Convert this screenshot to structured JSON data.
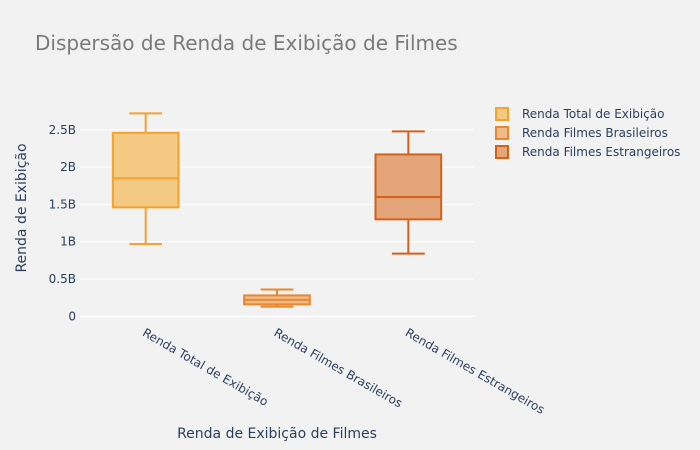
{
  "chart_data": {
    "type": "box",
    "title": "Dispersão de Renda de Exibição de Filmes",
    "xlabel": "Renda de Exibição de Filmes",
    "ylabel": "Renda de Exibição",
    "ylim": [
      -0.09,
      2.9
    ],
    "y_ticks": [
      {
        "value": 0,
        "label": "0"
      },
      {
        "value": 0.5,
        "label": "0.5B"
      },
      {
        "value": 1,
        "label": "1B"
      },
      {
        "value": 1.5,
        "label": "1.5B"
      },
      {
        "value": 2,
        "label": "2B"
      },
      {
        "value": 2.5,
        "label": "2.5B"
      }
    ],
    "grid": true,
    "legend_position": "top-right",
    "series": [
      {
        "name": "Renda Total de Exibição",
        "category": "Renda Total de Exibição",
        "min": 0.97,
        "q1": 1.46,
        "median": 1.85,
        "q3": 2.46,
        "max": 2.72,
        "color": "#f5a22e",
        "fill": "#f4c981"
      },
      {
        "name": "Renda Filmes Brasileiros",
        "category": "Renda Filmes Brasileiros",
        "min": 0.13,
        "q1": 0.16,
        "median": 0.22,
        "q3": 0.28,
        "max": 0.36,
        "color": "#e8872e",
        "fill": "#eebb8c"
      },
      {
        "name": "Renda Filmes Estrangeiros",
        "category": "Renda Filmes Estrangeiros",
        "min": 0.84,
        "q1": 1.3,
        "median": 1.6,
        "q3": 2.17,
        "max": 2.48,
        "color": "#d4601a",
        "fill": "#e3a579"
      }
    ]
  }
}
